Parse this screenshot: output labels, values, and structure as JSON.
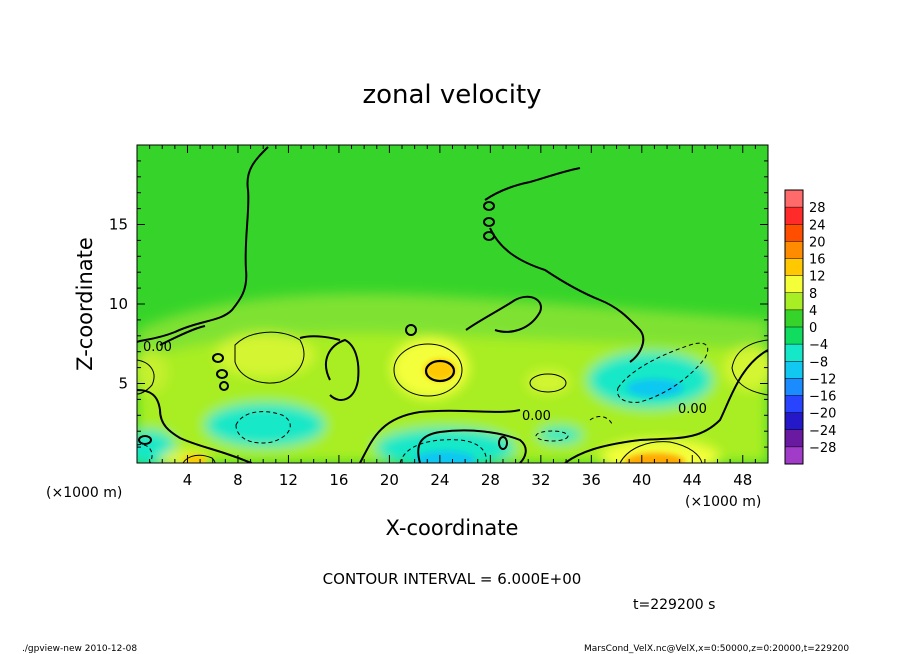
{
  "chart_data": {
    "type": "heatmap",
    "title": "zonal velocity",
    "xlabel": "X-coordinate",
    "ylabel": "Z-coordinate",
    "x_unit": "(×1000 m)",
    "y_unit": "(×1000 m)",
    "xlim": [
      0,
      50
    ],
    "ylim": [
      0,
      20
    ],
    "x_ticks": [
      4,
      8,
      12,
      16,
      20,
      24,
      28,
      32,
      36,
      40,
      44,
      48
    ],
    "y_ticks": [
      5,
      10,
      15
    ],
    "contour_labels": [
      "0.00",
      "0.00",
      "0.00"
    ],
    "contour_interval_text": "CONTOUR INTERVAL = 6.000E+00",
    "time_text": "t=229200 s",
    "colorbar": {
      "levels": [
        "28",
        "24",
        "20",
        "16",
        "12",
        "8",
        "4",
        "0",
        "−4",
        "−8",
        "−12",
        "−16",
        "−20",
        "−24",
        "−28"
      ],
      "colors": [
        "#ff6b6b",
        "#ff2a2a",
        "#ff4e00",
        "#ff8c00",
        "#ffc800",
        "#f4ff3a",
        "#a8ee24",
        "#36d42a",
        "#10dd60",
        "#14e8c8",
        "#10c8f0",
        "#1a8cff",
        "#2844ff",
        "#2418c8",
        "#6a1aa0",
        "#a03cc8"
      ]
    },
    "features": [
      {
        "x": 24,
        "z": 6,
        "value": 14,
        "kind": "max"
      },
      {
        "x": 41,
        "z": 0.6,
        "value": 13,
        "kind": "max"
      },
      {
        "x": 5,
        "z": 0.3,
        "value": 10,
        "kind": "max"
      },
      {
        "x": 24,
        "z": 1,
        "value": -12,
        "kind": "min"
      },
      {
        "x": 41,
        "z": 4.5,
        "value": -12,
        "kind": "min"
      },
      {
        "x": 9,
        "z": 2.5,
        "value": -8,
        "kind": "min"
      }
    ],
    "grid": false
  },
  "footer": {
    "left": "./gpview-new  2010-12-08",
    "right": "MarsCond_VelX.nc@VelX,x=0:50000,z=0:20000,t=229200"
  }
}
